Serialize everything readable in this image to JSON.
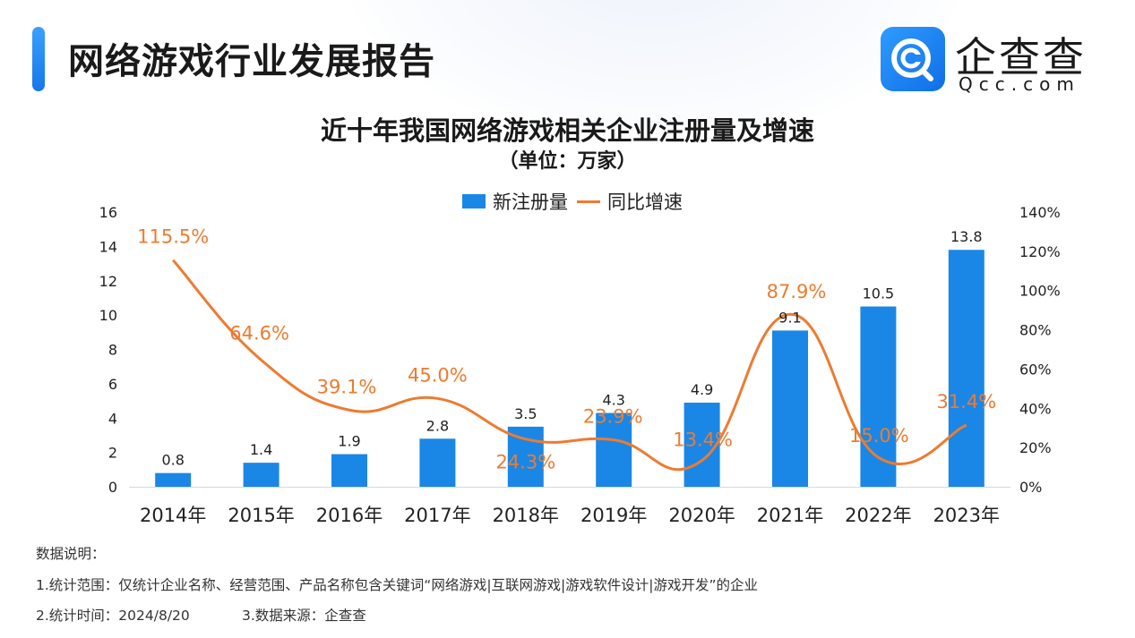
{
  "header": {
    "title": "网络游戏行业发展报告",
    "logo_name": "企查查",
    "logo_domain": "Qcc.com"
  },
  "colors": {
    "bar": "#1a87e6",
    "line": "#ed7b30",
    "accent": "#1677e8"
  },
  "chart_data": {
    "type": "bar",
    "title": "近十年我国网络游戏相关企业注册量及增速",
    "subtitle": "（单位：万家）",
    "categories": [
      "2014年",
      "2015年",
      "2016年",
      "2017年",
      "2018年",
      "2019年",
      "2020年",
      "2021年",
      "2022年",
      "2023年"
    ],
    "series": [
      {
        "name": "新注册量",
        "type": "bar",
        "axis": "left",
        "values": [
          0.8,
          1.4,
          1.9,
          2.8,
          3.5,
          4.3,
          4.9,
          9.1,
          10.5,
          13.8
        ],
        "labels": [
          "0.8",
          "1.4",
          "1.9",
          "2.8",
          "3.5",
          "4.3",
          "4.9",
          "9.1",
          "10.5",
          "13.8"
        ]
      },
      {
        "name": "同比增速",
        "type": "line",
        "axis": "right",
        "values": [
          115.5,
          64.6,
          39.1,
          45.0,
          24.3,
          23.9,
          13.4,
          87.9,
          15.0,
          31.4
        ],
        "labels": [
          "115.5%",
          "64.6%",
          "39.1%",
          "45.0%",
          "24.3%",
          "23.9%",
          "13.4%",
          "87.9%",
          "15.0%",
          "31.4%"
        ]
      }
    ],
    "ylim_left": [
      0,
      16
    ],
    "yticks_left": [
      "0",
      "2",
      "4",
      "6",
      "8",
      "10",
      "12",
      "14",
      "16"
    ],
    "ylim_right": [
      0,
      140
    ],
    "yticks_right": [
      "0%",
      "20%",
      "40%",
      "60%",
      "80%",
      "100%",
      "120%",
      "140%"
    ],
    "legend_position": "top-center",
    "grid": false
  },
  "notes": {
    "heading": "数据说明：",
    "line1": "1.统计范围：仅统计企业名称、经营范围、产品名称包含关键词“网络游戏|互联网游戏|游戏软件设计|游戏开发”的企业",
    "line2": "2.统计时间：2024/8/20",
    "line3": "3.数据来源：企查查"
  }
}
